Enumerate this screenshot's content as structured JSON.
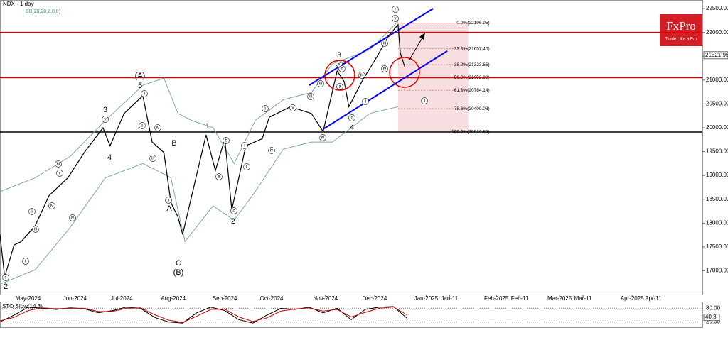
{
  "chart_data": {
    "type": "line",
    "title": "NDX - 1 day",
    "subtitle": "BB(20,20,2,0,0)",
    "x": [
      0,
      2,
      6,
      9,
      15,
      21,
      29,
      36,
      44,
      47,
      53,
      61,
      65,
      70,
      73,
      76,
      78,
      88,
      92,
      96,
      99,
      105,
      112,
      115,
      124,
      133,
      138,
      144,
      147,
      149,
      155,
      161,
      166,
      170,
      171,
      173
    ],
    "series": [
      {
        "color": "#000000",
        "values": [
          17760,
          16870,
          17540,
          17610,
          17940,
          18580,
          18950,
          19480,
          20000,
          19620,
          20300,
          20670,
          19700,
          19480,
          18430,
          18130,
          17760,
          19850,
          19100,
          19770,
          18280,
          19620,
          19770,
          20220,
          20440,
          20300,
          19920,
          21190,
          20970,
          20440,
          21010,
          21490,
          21930,
          22160,
          21560,
          21260
        ]
      }
    ],
    "bands": [
      {
        "color": "#7fa8a0",
        "x": [
          0,
          15,
          30,
          45,
          61,
          70,
          76,
          82,
          91,
          100,
          109,
          121,
          133,
          142,
          158,
          170
        ],
        "values": [
          18660,
          18950,
          19400,
          20150,
          20890,
          21040,
          20300,
          20150,
          20000,
          19250,
          20150,
          20590,
          20740,
          21340,
          21640,
          22230
        ]
      },
      {
        "color": "#7fa8a0",
        "x": [
          0,
          15,
          30,
          45,
          61,
          73,
          79,
          91,
          100,
          109,
          121,
          133,
          142,
          158,
          170
        ],
        "values": [
          16720,
          17020,
          17910,
          18950,
          19250,
          18950,
          17610,
          18360,
          18060,
          18660,
          19550,
          19700,
          19700,
          20300,
          20440
        ]
      }
    ],
    "channels": [
      {
        "color": "#0000ff",
        "x": [
          132,
          185
        ],
        "values": [
          20890,
          22500
        ]
      },
      {
        "color": "#0000ff",
        "x": [
          138,
          191
        ],
        "values": [
          19970,
          21610
        ]
      }
    ],
    "levels": [
      {
        "value": 22000,
        "color": "#e00000"
      },
      {
        "value": 21050,
        "color": "#e00000"
      },
      {
        "value": 19911,
        "color": "#000000"
      }
    ],
    "fib_levels": [
      {
        "value": 22196.95,
        "label": "0.0%(22196.95)"
      },
      {
        "value": 21657.4,
        "label": "23.6%(21657.40)"
      },
      {
        "value": 21323.66,
        "label": "38.2%(21323.66)"
      },
      {
        "value": 21053.9,
        "label": "50.0%(21053.90)"
      },
      {
        "value": 20784.14,
        "label": "61.8%(20784.14)"
      },
      {
        "value": 20400.08,
        "label": "78.6%(20400.08)"
      },
      {
        "value": 19910.85,
        "label": "100.0%(19910.85)"
      }
    ],
    "fib_xlim": [
      170,
      200
    ],
    "last_price": 21521.95,
    "xlim": [
      0,
      300
    ],
    "ylim": [
      16500,
      22680
    ],
    "yticks": [
      {
        "value": 17000,
        "label": "17000.00"
      },
      {
        "value": 17500,
        "label": "17500.00"
      },
      {
        "value": 18000,
        "label": "18000.00"
      },
      {
        "value": 18500,
        "label": "18500.00"
      },
      {
        "value": 19000,
        "label": "19000.00"
      },
      {
        "value": 19500,
        "label": "19500.00"
      },
      {
        "value": 20000,
        "label": "20000.00"
      },
      {
        "value": 20500,
        "label": "20500.00"
      },
      {
        "value": 21000,
        "label": "21000.00"
      },
      {
        "value": 21500,
        "label": "21500.00"
      },
      {
        "value": 22000,
        "label": "22000.00"
      },
      {
        "value": 22500,
        "label": "22500.00"
      }
    ],
    "xticks": [
      {
        "value": 12,
        "label": "May-2024"
      },
      {
        "value": 32,
        "label": "Jun-2024"
      },
      {
        "value": 52,
        "label": "Jul-2024"
      },
      {
        "value": 74,
        "label": "Aug-2024"
      },
      {
        "value": 96,
        "label": "Sep-2024"
      },
      {
        "value": 116,
        "label": "Oct-2024"
      },
      {
        "value": 139,
        "label": "Nov-2024"
      },
      {
        "value": 160,
        "label": "Dec-2024"
      },
      {
        "value": 182,
        "label": "Jan-2025"
      },
      {
        "value": 192,
        "label": "Jan-11"
      },
      {
        "value": 212,
        "label": "Feb-2025"
      },
      {
        "value": 222,
        "label": "Feb-11"
      },
      {
        "value": 239,
        "label": "Mar-2025"
      },
      {
        "value": 249,
        "label": "Mar-11"
      },
      {
        "value": 270,
        "label": "Apr-2025"
      },
      {
        "value": 279,
        "label": "Apr-11"
      }
    ],
    "wave_labels": [
      "2",
      "c",
      "ii",
      "i",
      "iii",
      "iv",
      "iii",
      "v",
      "iv",
      "3",
      "v",
      "4",
      "(A)",
      "5",
      "ii",
      "i",
      "iv",
      "iii",
      "B",
      "v",
      "A",
      "C",
      "(B)",
      "1",
      "b",
      "a",
      "c",
      "2",
      "i",
      "ii",
      "iv",
      "i",
      "v",
      "iii",
      "iii",
      "iv",
      "3",
      "v",
      "b",
      "a",
      "4",
      "c",
      "iii",
      "ii",
      "iii",
      "iv",
      "v",
      "i",
      "ii"
    ],
    "stochastic": {
      "title": "STO Slow(14,3)",
      "ylim": [
        0,
        100
      ],
      "yticks": [
        {
          "value": 80,
          "label": "80.00"
        },
        {
          "value": 20,
          "label": "20.00"
        }
      ],
      "last": 40.3,
      "x": [
        0,
        6,
        12,
        18,
        24,
        30,
        36,
        42,
        48,
        54,
        60,
        66,
        72,
        78,
        84,
        90,
        96,
        102,
        108,
        114,
        120,
        126,
        132,
        138,
        144,
        150,
        156,
        162,
        168,
        174
      ],
      "series": [
        {
          "color": "#000000",
          "values": [
            20,
            50,
            85,
            80,
            75,
            82,
            78,
            60,
            70,
            85,
            80,
            40,
            20,
            15,
            60,
            85,
            70,
            30,
            15,
            50,
            80,
            75,
            85,
            60,
            80,
            30,
            75,
            85,
            88,
            35
          ]
        },
        {
          "color": "#cc0000",
          "values": [
            25,
            40,
            70,
            82,
            78,
            80,
            80,
            66,
            66,
            80,
            82,
            52,
            28,
            18,
            45,
            75,
            76,
            42,
            22,
            38,
            68,
            77,
            82,
            68,
            75,
            42,
            62,
            80,
            86,
            50
          ]
        }
      ]
    },
    "logo": {
      "name": "FxPro",
      "tagline": "Trade Like a Pro"
    }
  }
}
